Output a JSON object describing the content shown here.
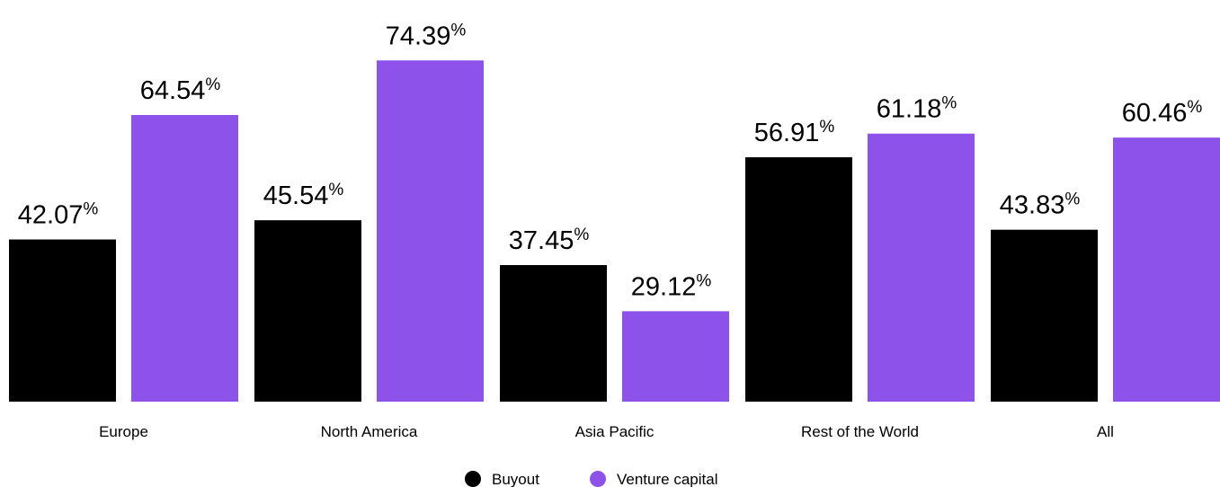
{
  "chart_data": {
    "type": "bar",
    "categories": [
      "Europe",
      "North America",
      "Asia Pacific",
      "Rest of the World",
      "All"
    ],
    "series": [
      {
        "name": "Buyout",
        "color": "#000000",
        "values": [
          42.07,
          45.54,
          37.45,
          56.91,
          43.83
        ],
        "value_labels": [
          "42.07%",
          "45.54%",
          "37.45%",
          "56.91%",
          "43.83%"
        ]
      },
      {
        "name": "Venture capital",
        "color": "#8c52ea",
        "values": [
          64.54,
          74.39,
          29.12,
          61.18,
          60.46
        ],
        "value_labels": [
          "64.54%",
          "74.39%",
          "29.12%",
          "61.18%",
          "60.46%"
        ]
      }
    ],
    "ylim": [
      12.8,
      78
    ]
  }
}
